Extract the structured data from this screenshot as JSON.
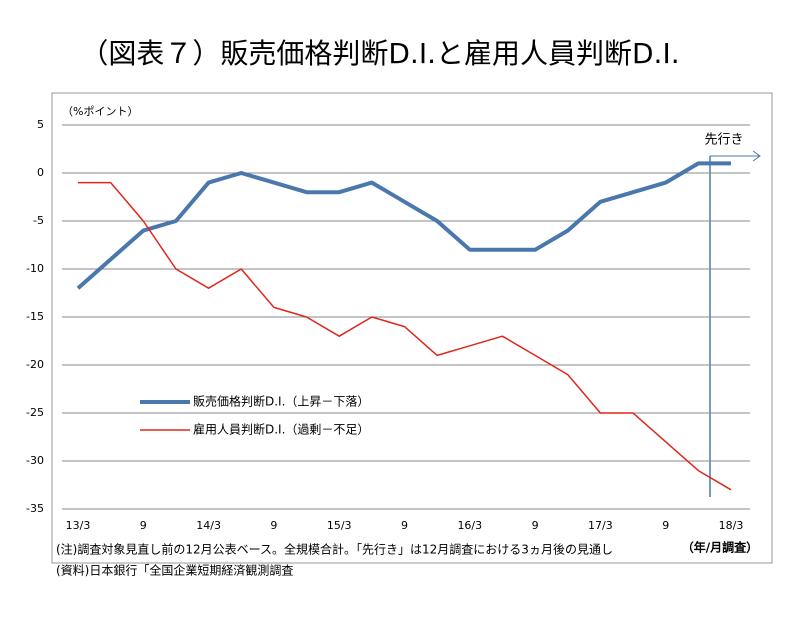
{
  "chart_data": {
    "type": "line",
    "title": "（図表７）販売価格判断D.I.と雇用人員判断D.I.",
    "y_label": "（%ポイント）",
    "x_label": "（年/月調査）",
    "annotation": "先行き",
    "notes": [
      "(注)調査対象見直し前の12月公表ベース。全規模合計。「先行き」は12月調査における3ヵ月後の見通し",
      "(資料)日本銀行「全国企業短期経済観測調査"
    ],
    "categories": [
      "13/3",
      null,
      "9",
      null,
      "14/3",
      null,
      "9",
      null,
      "15/3",
      null,
      "9",
      null,
      "16/3",
      null,
      "9",
      null,
      "17/3",
      null,
      "9",
      null,
      "18/3"
    ],
    "series": [
      {
        "name": "販売価格判断D.I.（上昇－下落）",
        "color": "#4a78ac",
        "values": [
          -12,
          -9,
          -6,
          -5,
          -1,
          0,
          -1,
          -2,
          -2,
          -1,
          -3,
          -5,
          -8,
          -8,
          -8,
          -6,
          -3,
          -2,
          -1,
          1,
          1
        ]
      },
      {
        "name": "雇用人員判断D.I.（過剰－不足）",
        "color": "#e0261c",
        "values": [
          -1,
          -1,
          -5,
          -10,
          -12,
          -10,
          -14,
          -15,
          -17,
          -15,
          -16,
          -19,
          -18,
          -17,
          -19,
          -21,
          -25,
          -25,
          -28,
          -31,
          -33
        ]
      }
    ],
    "ylim": [
      -35,
      5
    ],
    "yticks": [
      5,
      0,
      -5,
      -10,
      -15,
      -20,
      -25,
      -30,
      -35
    ],
    "grid": true
  }
}
